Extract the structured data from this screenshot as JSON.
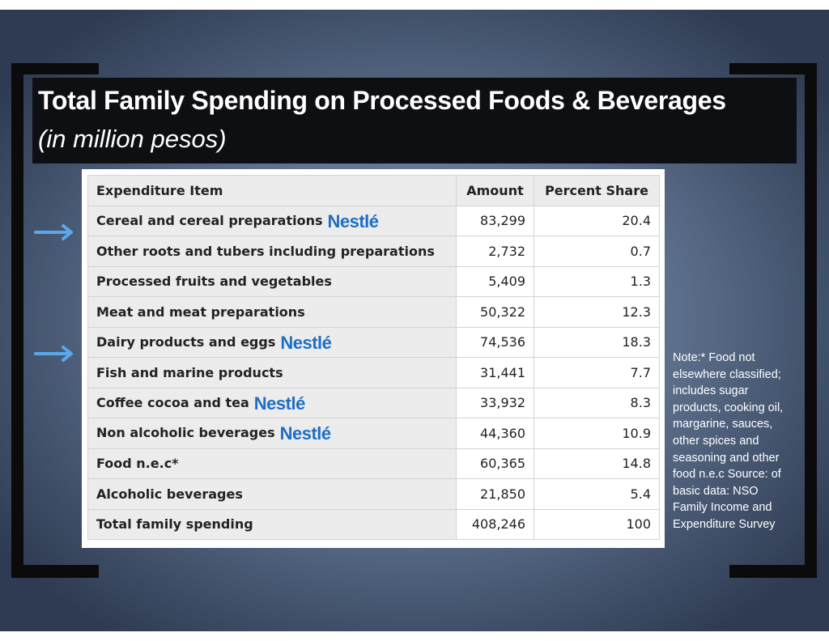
{
  "title": "Total Family Spending on Processed Foods & Beverages",
  "subtitle": "(in million pesos)",
  "logo_text": "Nestlé",
  "table": {
    "headers": [
      "Expenditure Item",
      "Amount",
      "Percent Share"
    ],
    "rows": [
      {
        "item": "Cereal and cereal preparations",
        "amount": "83,299",
        "share": "20.4",
        "nestle": true
      },
      {
        "item": "Other roots and tubers including preparations",
        "amount": "2,732",
        "share": "0.7",
        "nestle": false
      },
      {
        "item": "Processed fruits and vegetables",
        "amount": "5,409",
        "share": "1.3",
        "nestle": false
      },
      {
        "item": "Meat and meat preparations",
        "amount": "50,322",
        "share": "12.3",
        "nestle": false
      },
      {
        "item": "Dairy products and eggs",
        "amount": "74,536",
        "share": "18.3",
        "nestle": true
      },
      {
        "item": "Fish and marine products",
        "amount": "31,441",
        "share": "7.7",
        "nestle": false
      },
      {
        "item": "Coffee cocoa and tea",
        "amount": "33,932",
        "share": "8.3",
        "nestle": true
      },
      {
        "item": "Non alcoholic beverages",
        "amount": "44,360",
        "share": "10.9",
        "nestle": true
      },
      {
        "item": "Food n.e.c*",
        "amount": "60,365",
        "share": "14.8",
        "nestle": false
      },
      {
        "item": "Alcoholic beverages",
        "amount": "21,850",
        "share": "5.4",
        "nestle": false
      },
      {
        "item": "Total family spending",
        "amount": "408,246",
        "share": "100",
        "nestle": false
      }
    ]
  },
  "note": "Note:* Food not elsewhere classified; includes sugar products, cooking oil, margarine, sauces, other spices and seasoning and other food n.e.c Source: of basic data: NSO Family Income and Expenditure Survey",
  "colors": {
    "accent_blue": "#1e6fc4",
    "arrow_blue": "#5aa7ec",
    "title_band": "#0d0f13"
  },
  "icons": {
    "arrow": "arrow-right-icon",
    "logo": "nestle-logo"
  }
}
